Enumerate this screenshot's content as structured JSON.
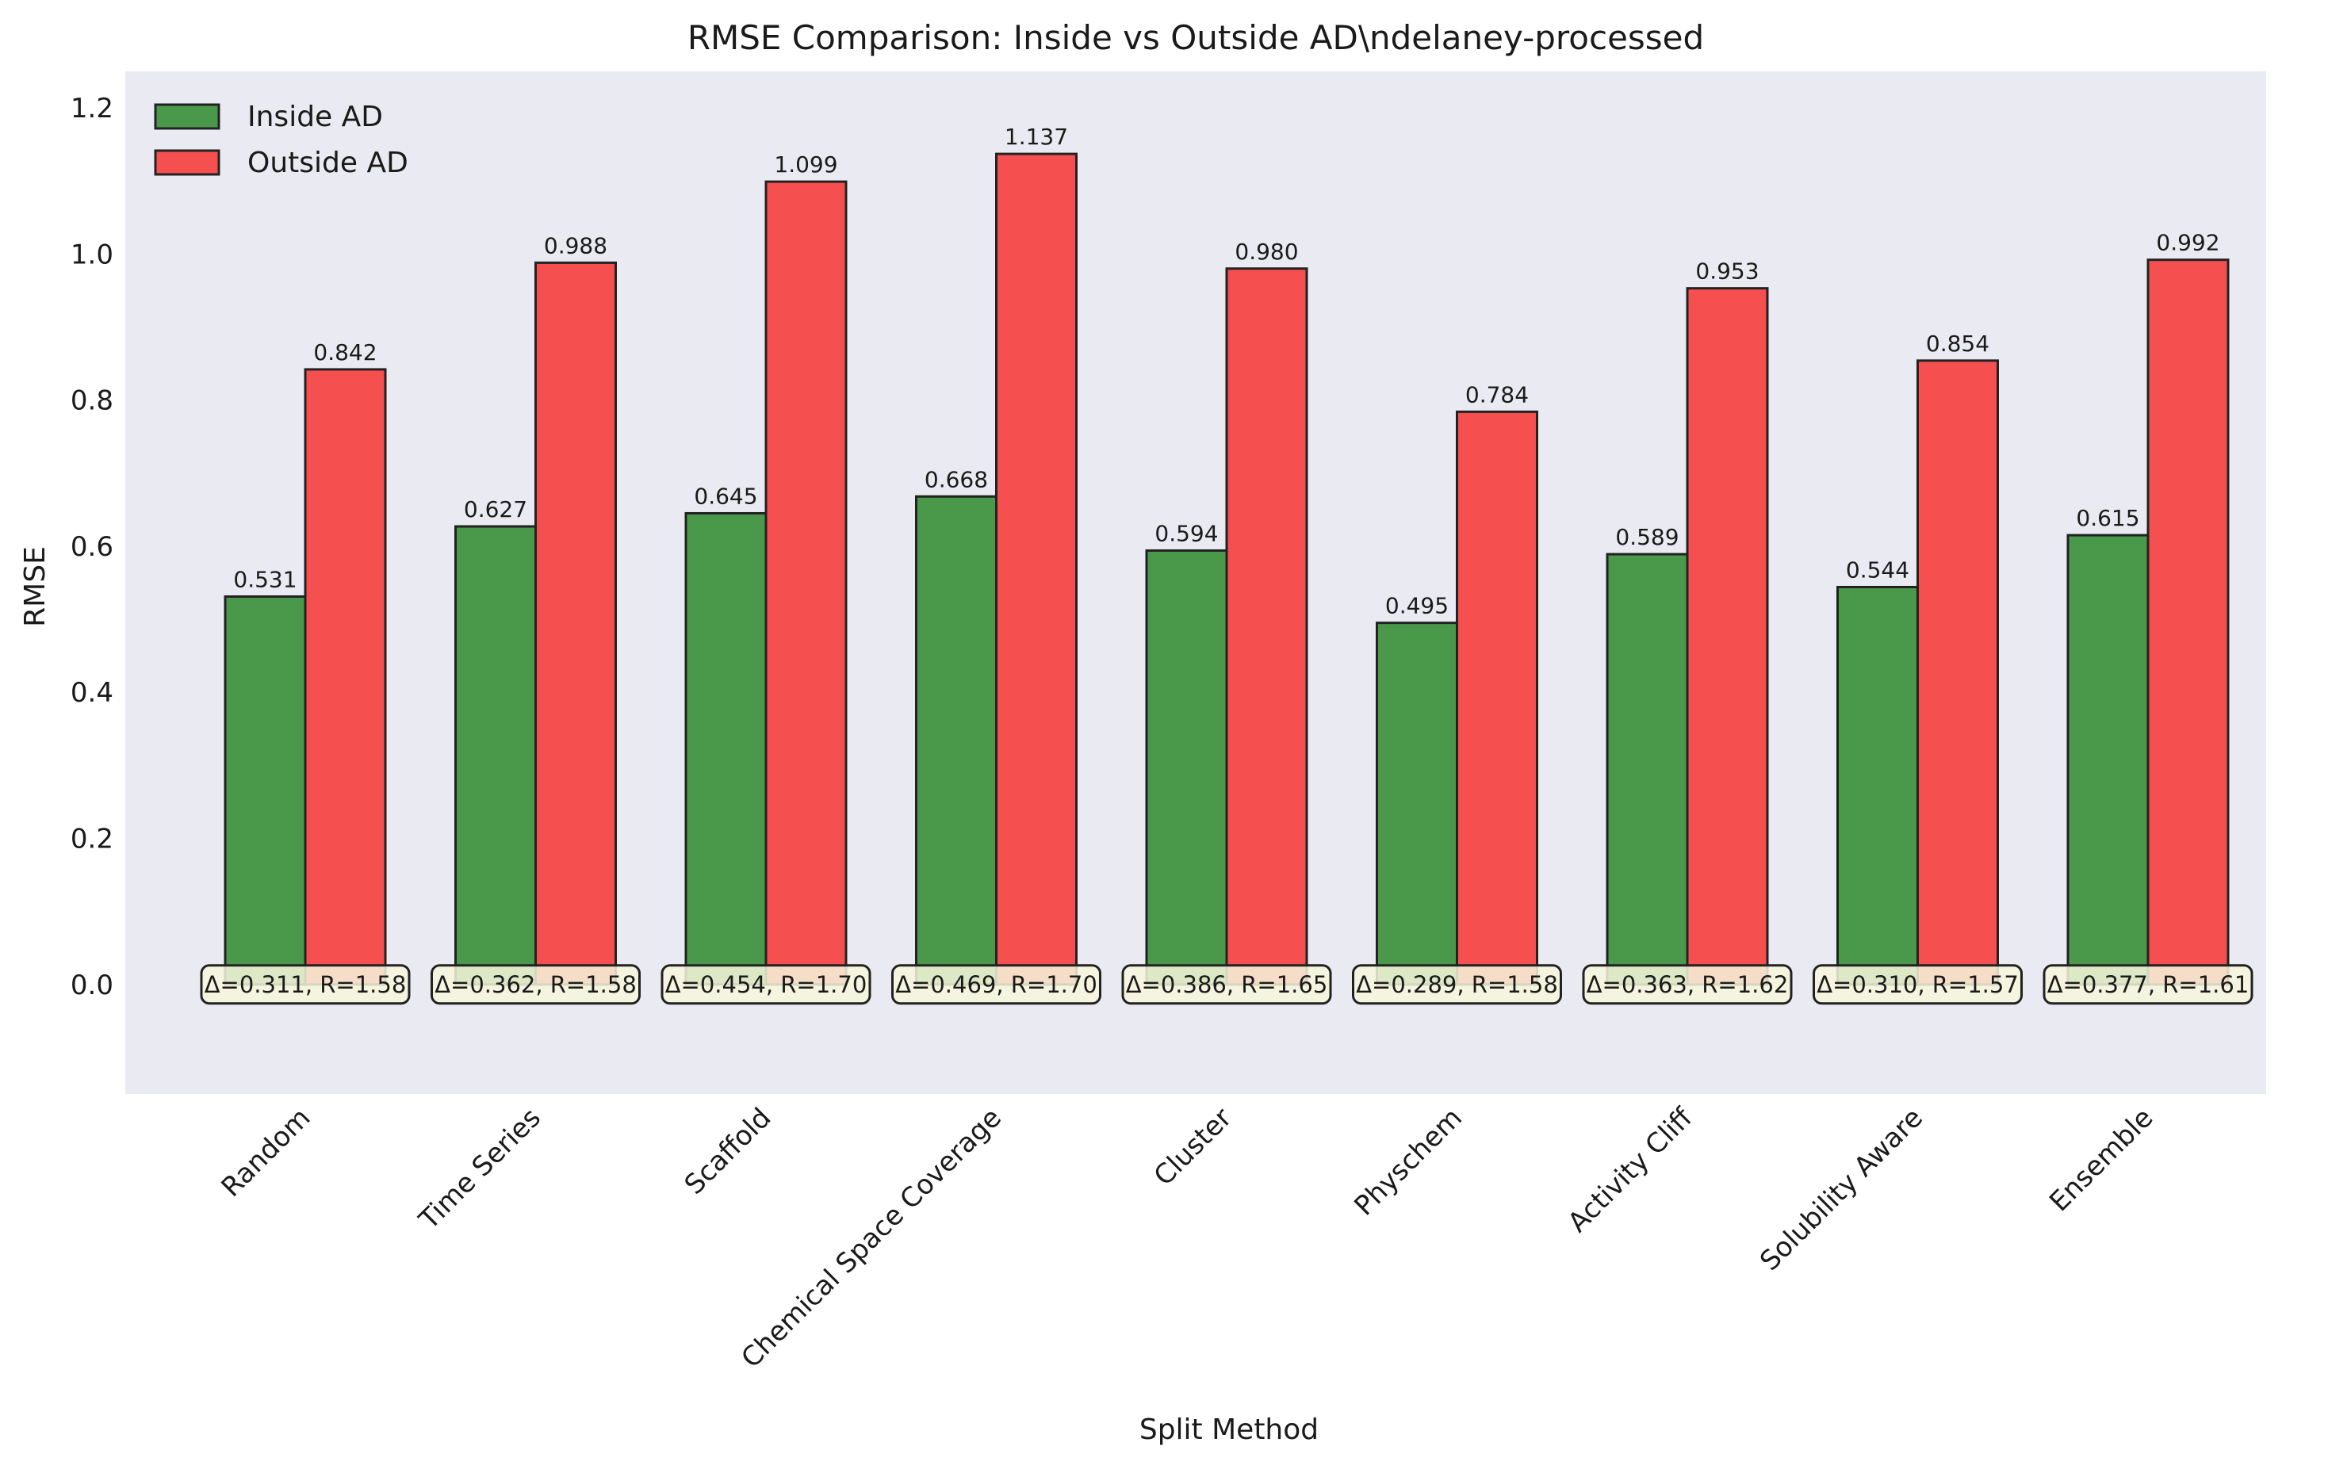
{
  "chart_data": {
    "type": "bar",
    "title": "RMSE Comparison: Inside vs Outside AD\\ndelaney-processed",
    "xlabel": "Split Method",
    "ylabel": "RMSE",
    "ylim": [
      -0.15,
      1.25
    ],
    "yticks": [
      0.0,
      0.2,
      0.4,
      0.6,
      0.8,
      1.0,
      1.2
    ],
    "ytick_labels": [
      "0.0",
      "0.2",
      "0.4",
      "0.6",
      "0.8",
      "1.0",
      "1.2"
    ],
    "grid": false,
    "legend_position": "top-left",
    "categories": [
      "Random",
      "Time Series",
      "Scaffold",
      "Chemical Space Coverage",
      "Cluster",
      "Physchem",
      "Activity Cliff",
      "Solubility Aware",
      "Ensemble"
    ],
    "series": [
      {
        "name": "Inside AD",
        "color": "#2e8b2e",
        "values": [
          0.531,
          0.627,
          0.645,
          0.668,
          0.594,
          0.495,
          0.589,
          0.544,
          0.615
        ],
        "labels": [
          "0.531",
          "0.627",
          "0.645",
          "0.668",
          "0.594",
          "0.495",
          "0.589",
          "0.544",
          "0.615"
        ]
      },
      {
        "name": "Outside AD",
        "color": "#f83434",
        "values": [
          0.842,
          0.988,
          1.099,
          1.137,
          0.98,
          0.784,
          0.953,
          0.854,
          0.992
        ],
        "labels": [
          "0.842",
          "0.988",
          "1.099",
          "1.137",
          "0.980",
          "0.784",
          "0.953",
          "0.854",
          "0.992"
        ]
      }
    ],
    "annotations": [
      "Δ=0.311, R=1.58",
      "Δ=0.362, R=1.58",
      "Δ=0.454, R=1.70",
      "Δ=0.469, R=1.70",
      "Δ=0.386, R=1.65",
      "Δ=0.289, R=1.58",
      "Δ=0.363, R=1.62",
      "Δ=0.310, R=1.57",
      "Δ=0.377, R=1.61"
    ],
    "colors": {
      "plot_background": "#eaeaf2",
      "annotation_fill": "#f6f6dc",
      "edge": "#222222"
    }
  }
}
